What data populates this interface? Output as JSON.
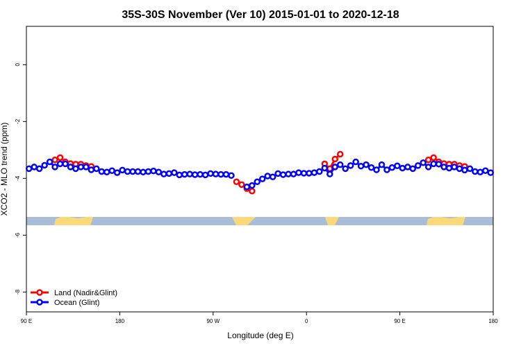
{
  "chart_data": {
    "type": "line",
    "title": "35S-30S November (Ver 10)   2015-01-01 to 2020-12-18",
    "x_label": "Longitude (deg E)",
    "y_label": "XCO2 - MLO trend (ppm)",
    "x": [
      92.5,
      97.5,
      102.5,
      107.5,
      112.5,
      117.5,
      122.5,
      127.5,
      132.5,
      137.5,
      142.5,
      147.5,
      152.5,
      157.5,
      162.5,
      167.5,
      172.5,
      177.5,
      182.5,
      187.5,
      192.5,
      197.5,
      202.5,
      207.5,
      212.5,
      217.5,
      222.5,
      227.5,
      232.5,
      237.5,
      242.5,
      247.5,
      252.5,
      257.5,
      262.5,
      267.5,
      272.5,
      277.5,
      282.5,
      287.5,
      292.5,
      297.5,
      302.5,
      307.5,
      312.5,
      317.5,
      322.5,
      327.5,
      332.5,
      337.5,
      342.5,
      347.5,
      352.5,
      357.5,
      362.5,
      367.5,
      372.5,
      377.5,
      382.5,
      387.5,
      392.5,
      397.5,
      402.5,
      407.5,
      412.5,
      417.5,
      422.5,
      427.5,
      432.5,
      437.5,
      442.5,
      447.5,
      452.5,
      457.5,
      462.5,
      467.5,
      472.5,
      477.5,
      482.5,
      487.5,
      492.5,
      497.5,
      502.5,
      507.5,
      512.5,
      517.5,
      522.5,
      527.5,
      532.5,
      537.5
    ],
    "series": [
      {
        "name": "Land (Nadir&Glint)",
        "color": "#ff0000",
        "values": [
          null,
          null,
          null,
          null,
          null,
          -3.35,
          -3.27,
          -3.42,
          -3.48,
          -3.5,
          -3.5,
          -3.55,
          -3.58,
          null,
          null,
          null,
          null,
          null,
          null,
          null,
          null,
          null,
          null,
          null,
          null,
          null,
          null,
          null,
          null,
          null,
          null,
          null,
          null,
          null,
          null,
          null,
          null,
          null,
          null,
          null,
          -4.12,
          -4.22,
          -4.36,
          -4.45,
          null,
          null,
          null,
          null,
          null,
          null,
          null,
          null,
          null,
          null,
          null,
          null,
          null,
          -3.49,
          -3.66,
          -3.32,
          -3.15,
          null,
          null,
          null,
          null,
          null,
          null,
          null,
          null,
          null,
          null,
          null,
          null,
          null,
          null,
          null,
          null,
          -3.35,
          -3.27,
          -3.42,
          -3.48,
          -3.5,
          -3.5,
          -3.55,
          -3.58,
          null,
          null,
          null,
          null,
          null
        ]
      },
      {
        "name": "Ocean (Glint)",
        "color": "#0000ff",
        "values": [
          -3.66,
          -3.6,
          -3.66,
          -3.54,
          -3.42,
          -3.6,
          -3.49,
          -3.49,
          -3.6,
          -3.66,
          -3.6,
          -3.6,
          -3.7,
          -3.66,
          -3.76,
          -3.78,
          -3.73,
          -3.8,
          -3.71,
          -3.76,
          -3.76,
          -3.76,
          -3.78,
          -3.76,
          -3.74,
          -3.78,
          -3.85,
          -3.83,
          -3.8,
          -3.88,
          -3.86,
          -3.85,
          -3.87,
          -3.86,
          -3.88,
          -3.83,
          -3.85,
          -3.86,
          -3.86,
          -3.9,
          null,
          null,
          -4.3,
          -4.25,
          -4.12,
          -4.02,
          -3.92,
          -3.95,
          -3.83,
          -3.87,
          -3.85,
          -3.85,
          -3.8,
          -3.82,
          -3.82,
          -3.8,
          -3.76,
          -3.64,
          -3.85,
          -3.6,
          -3.52,
          -3.66,
          -3.55,
          -3.42,
          -3.57,
          -3.52,
          -3.62,
          -3.7,
          -3.52,
          -3.7,
          -3.62,
          -3.56,
          -3.64,
          -3.6,
          -3.66,
          -3.55,
          -3.45,
          -3.6,
          -3.49,
          -3.5,
          -3.6,
          -3.64,
          -3.6,
          -3.66,
          -3.71,
          -3.66,
          -3.76,
          -3.78,
          -3.73,
          -3.8
        ]
      }
    ],
    "xlim": [
      90,
      540
    ],
    "xticks": [
      {
        "value": 90,
        "label": "90 E"
      },
      180,
      {
        "value": 270,
        "label": "90 W"
      },
      {
        "value": 360,
        "label": "0"
      },
      {
        "value": 450,
        "label": "90 E"
      },
      {
        "value": 540,
        "label": "180"
      }
    ],
    "ylim": [
      -8.7,
      1.35
    ],
    "yticks": [
      0,
      -2,
      -4,
      -6,
      -8
    ],
    "legend": "bottom-left"
  }
}
